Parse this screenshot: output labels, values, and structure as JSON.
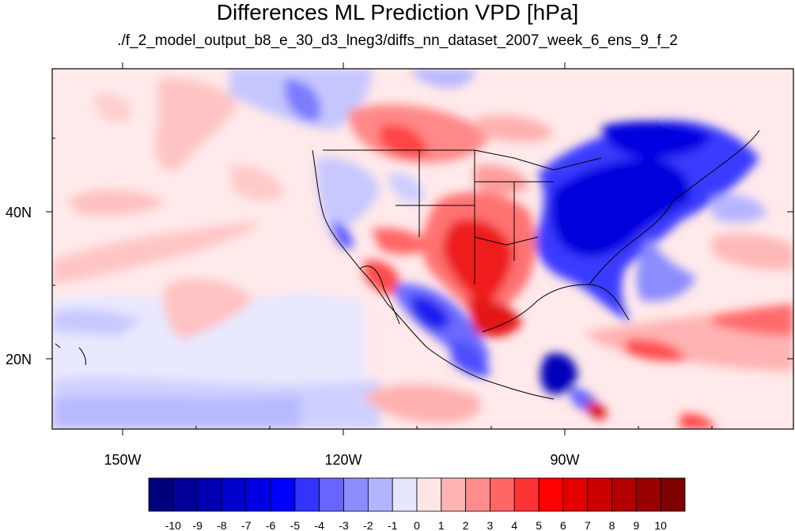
{
  "title": "Differences ML Prediction VPD [hPa]",
  "subtitle": "./f_2_model_output_b8_e_30_d3_lneg3/diffs_nn_dataset_2007_week_6_ens_9_f_2",
  "map": {
    "lon_range": [
      -160,
      -60
    ],
    "lat_range": [
      10,
      59
    ],
    "x_tick_labels": [
      "150W",
      "120W",
      "90W"
    ],
    "y_tick_labels": [
      "40N",
      "20N"
    ]
  },
  "colorbar": {
    "labels": [
      "-10",
      "-9",
      "-8",
      "-7",
      "-6",
      "-5",
      "-4",
      "-3",
      "-2",
      "-1",
      "0",
      "1",
      "2",
      "3",
      "4",
      "5",
      "6",
      "7",
      "8",
      "9",
      "10"
    ],
    "colors": [
      "#00007f",
      "#000099",
      "#0000b2",
      "#0000cc",
      "#0000e5",
      "#0000ff",
      "#3333ff",
      "#6666ff",
      "#8c8cff",
      "#b3b3ff",
      "#e6e6ff",
      "#ffe6e6",
      "#ffb3b3",
      "#ff8c8c",
      "#ff6666",
      "#ff3333",
      "#ff0000",
      "#e50000",
      "#cc0000",
      "#b20000",
      "#990000",
      "#7f0000"
    ]
  },
  "palette": {
    "background_pink": "#ffe9ea",
    "background_blue": "#e9e9ff"
  }
}
